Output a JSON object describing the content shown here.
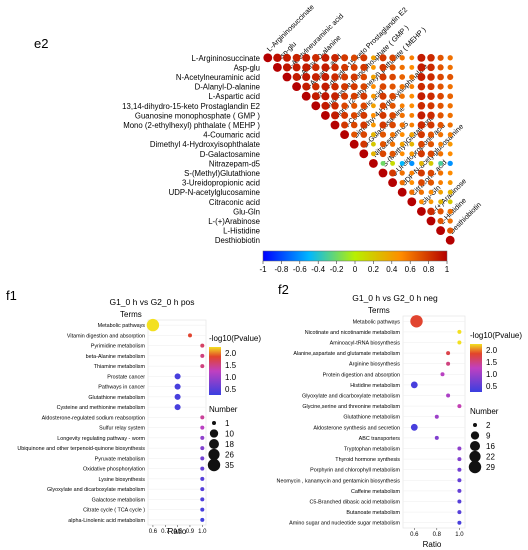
{
  "panel_labels": {
    "e2": "e2",
    "f1": "f1",
    "f2": "f2"
  },
  "colors": {
    "bubble_high": "#e2442a",
    "bubble_mid": "#f3e020",
    "bubble_low": "#3a3fe0"
  },
  "chart_data": [
    {
      "id": "e2",
      "type": "heatmap",
      "title": "",
      "labels": [
        "L-Argininosuccinate",
        "Asp-glu",
        "N-Acetylneuraminic acid",
        "D-Alanyl-D-alanine",
        "L-Aspartic acid",
        "13,14-dihydro-15-keto Prostaglandin E2",
        "Guanosine monophosphate ( GMP )",
        "Mono (2-ethylhexyl) phthalate ( MEHP )",
        "4-Coumaric acid",
        "Dimethyl 4-Hydroxyisophthalate",
        "D-Galactosamine",
        "Nitrazepam-d5",
        "S-(Methyl)Glutathione",
        "3-Ureidopropionic acid",
        "UDP-N-acetylglucosamine",
        "Citraconic acid",
        "Glu-Gln",
        "L-(+)Arabinose",
        "L-Histidine",
        "Desthiobiotin"
      ],
      "matrix_upper_triangle": [
        [
          1,
          0.95,
          0.9,
          0.88,
          0.9,
          0.85,
          0.9,
          0.87,
          0.8,
          0.75,
          0.8,
          0.4,
          0.8,
          0.75,
          0.6,
          0.55,
          0.9,
          0.85,
          0.7,
          0.6
        ],
        [
          1,
          0.92,
          0.9,
          0.9,
          0.85,
          0.9,
          0.85,
          0.8,
          0.78,
          0.8,
          0.45,
          0.8,
          0.7,
          0.6,
          0.5,
          0.9,
          0.85,
          0.7,
          0.6
        ],
        [
          1,
          0.9,
          0.92,
          0.88,
          0.9,
          0.85,
          0.8,
          0.8,
          0.75,
          0.4,
          0.8,
          0.75,
          0.65,
          0.6,
          0.9,
          0.85,
          0.75,
          0.7
        ],
        [
          1,
          0.9,
          0.85,
          0.9,
          0.85,
          0.8,
          0.8,
          0.75,
          0.5,
          0.75,
          0.7,
          0.6,
          0.55,
          0.85,
          0.8,
          0.7,
          0.6
        ],
        [
          1,
          0.9,
          0.92,
          0.88,
          0.8,
          0.78,
          0.8,
          0.45,
          0.8,
          0.75,
          0.6,
          0.5,
          0.9,
          0.85,
          0.75,
          0.65
        ],
        [
          1,
          0.9,
          0.85,
          0.75,
          0.7,
          0.75,
          0.4,
          0.75,
          0.7,
          0.55,
          0.5,
          0.85,
          0.8,
          0.7,
          0.6
        ],
        [
          1,
          0.9,
          0.8,
          0.75,
          0.8,
          0.5,
          0.8,
          0.75,
          0.6,
          0.55,
          0.9,
          0.85,
          0.7,
          0.6
        ],
        [
          1,
          0.8,
          0.75,
          0.8,
          0.45,
          0.8,
          0.75,
          0.6,
          0.55,
          0.85,
          0.8,
          0.7,
          0.6
        ],
        [
          1,
          0.7,
          0.75,
          0.3,
          0.7,
          0.6,
          0.5,
          0.4,
          0.8,
          0.7,
          0.6,
          0.55
        ],
        [
          1,
          0.8,
          0.2,
          0.7,
          0.6,
          0.4,
          0.3,
          0.75,
          0.7,
          0.55,
          0.45
        ],
        [
          1,
          0.3,
          0.75,
          0.7,
          0.5,
          0.45,
          0.8,
          0.75,
          0.6,
          0.5
        ],
        [
          1,
          -0.2,
          0.1,
          -0.5,
          -0.6,
          0.3,
          0.2,
          -0.3,
          -0.6
        ],
        [
          1,
          0.8,
          0.6,
          0.55,
          0.8,
          0.75,
          0.6,
          0.5
        ],
        [
          1,
          0.6,
          0.5,
          0.75,
          0.7,
          0.55,
          0.45
        ],
        [
          1,
          0.6,
          0.6,
          0.5,
          0.4,
          0.3
        ],
        [
          1,
          0.5,
          0.45,
          0.3,
          0.2
        ],
        [
          1,
          0.85,
          0.7,
          0.6
        ],
        [
          1,
          0.7,
          0.6
        ],
        [
          1,
          0.7
        ],
        [
          1
        ]
      ],
      "colorbar": {
        "min": -1,
        "max": 1,
        "ticks": [
          "-1",
          "-0.8",
          "-0.6",
          "-0.4",
          "-0.2",
          "0",
          "0.2",
          "0.4",
          "0.6",
          "0.8",
          "1"
        ]
      }
    },
    {
      "id": "f1",
      "type": "scatter",
      "title": "G1_0 h vs G2_0 h pos",
      "ylabel": "Terms",
      "xlabel": "Ratio",
      "x_ticks": [
        "0.6",
        "0.7",
        "0.8",
        "0.9",
        "1.0"
      ],
      "xlim": [
        0.56,
        1.03
      ],
      "terms": [
        "Metabolic pathways",
        "Vitamin digestion and absorption",
        "Pyrimidine metabolism",
        "beta-Alanine metabolism",
        "Thiamine metabolism",
        "Prostate cancer",
        "Pathways in cancer",
        "Glutathione metabolism",
        "Cysteine and methionine metabolism",
        "Aldosterone-regulated sodium reabsorption",
        "Sulfur relay system",
        "Longevity regulating pathway - worm",
        "Ubiquinone and other terpenoid-quinone biosynthesis",
        "Pyruvate metabolism",
        "Oxidative phosphorylation",
        "Lysine biosynthesis",
        "Glyoxylate and dicarboxylate metabolism",
        "Galactose metabolism",
        "Citrate cycle ( TCA cycle )",
        "alpha-Linolenic acid metabolism"
      ],
      "ratio": [
        0.6,
        0.9,
        1.0,
        1.0,
        1.0,
        0.8,
        0.8,
        0.8,
        0.8,
        1.0,
        1.0,
        1.0,
        1.0,
        1.0,
        1.0,
        1.0,
        1.0,
        1.0,
        1.0,
        1.0
      ],
      "neg_log10_pvalue": [
        2.2,
        1.8,
        1.6,
        1.5,
        1.5,
        0.4,
        0.4,
        0.4,
        0.4,
        1.4,
        1.2,
        0.9,
        0.8,
        0.7,
        0.6,
        0.5,
        0.5,
        0.45,
        0.4,
        0.35
      ],
      "number": [
        35,
        1,
        1,
        1,
        1,
        3,
        3,
        3,
        3,
        1,
        1,
        1,
        1,
        1,
        1,
        1,
        1,
        1,
        1,
        1
      ],
      "color_legend": {
        "title": "-log10(Pvalue)",
        "ticks": [
          "2.0",
          "1.5",
          "1.0",
          "0.5"
        ],
        "min": 0.3,
        "max": 2.2
      },
      "size_legend": {
        "title": "Number",
        "values": [
          "1",
          "10",
          "18",
          "26",
          "35"
        ]
      }
    },
    {
      "id": "f2",
      "type": "scatter",
      "title": "G1_0 h vs G2_0 h neg",
      "ylabel": "Terms",
      "xlabel": "Ratio",
      "x_ticks": [
        "0.6",
        "0.8",
        "1.0"
      ],
      "xlim": [
        0.5,
        1.05
      ],
      "terms": [
        "Metabolic pathways",
        "Nicotinate and nicotinamide metabolism",
        "Aminoacyl-tRNA biosynthesis",
        "Alanine,aspartate and glutamate metabolism",
        "Arginine biosynthesis",
        "Protein digestion and absorption",
        "Histidine metabolism",
        "Glyoxylate and dicarboxylate metabolism",
        "Glycine,serine and threonine metabolism",
        "Glutathione metabolism",
        "Aldosterone synthesis and secretion",
        "ABC transporters",
        "Tryptophan metabolism",
        "Thyroid hormone synthesis",
        "Porphyrin and chlorophyll metabolism",
        "Neomycin , kanamycin and gentamicin biosynthesis",
        "Caffeine metabolism",
        "C5-Branched dibasic acid metabolism",
        "Butanoate metabolism",
        "Amino sugar and nucleotide sugar metabolism"
      ],
      "ratio": [
        0.62,
        1.0,
        1.0,
        0.9,
        0.9,
        0.85,
        0.6,
        0.9,
        1.0,
        0.8,
        0.6,
        0.8,
        1.0,
        1.0,
        1.0,
        1.0,
        1.0,
        1.0,
        1.0,
        1.0
      ],
      "neg_log10_pvalue": [
        1.8,
        2.2,
        2.2,
        1.7,
        1.5,
        1.2,
        0.4,
        1.1,
        1.3,
        1.0,
        0.4,
        0.8,
        0.9,
        0.8,
        0.7,
        0.6,
        0.6,
        0.5,
        0.5,
        0.4
      ],
      "number": [
        29,
        2,
        2,
        2,
        2,
        2,
        5,
        2,
        2,
        2,
        5,
        2,
        2,
        2,
        2,
        2,
        2,
        2,
        2,
        2
      ],
      "color_legend": {
        "title": "-log10(Pvalue)",
        "ticks": [
          "2.0",
          "1.5",
          "1.0",
          "0.5"
        ],
        "min": 0.3,
        "max": 2.2
      },
      "size_legend": {
        "title": "Number",
        "values": [
          "2",
          "9",
          "16",
          "22",
          "29"
        ]
      }
    }
  ]
}
